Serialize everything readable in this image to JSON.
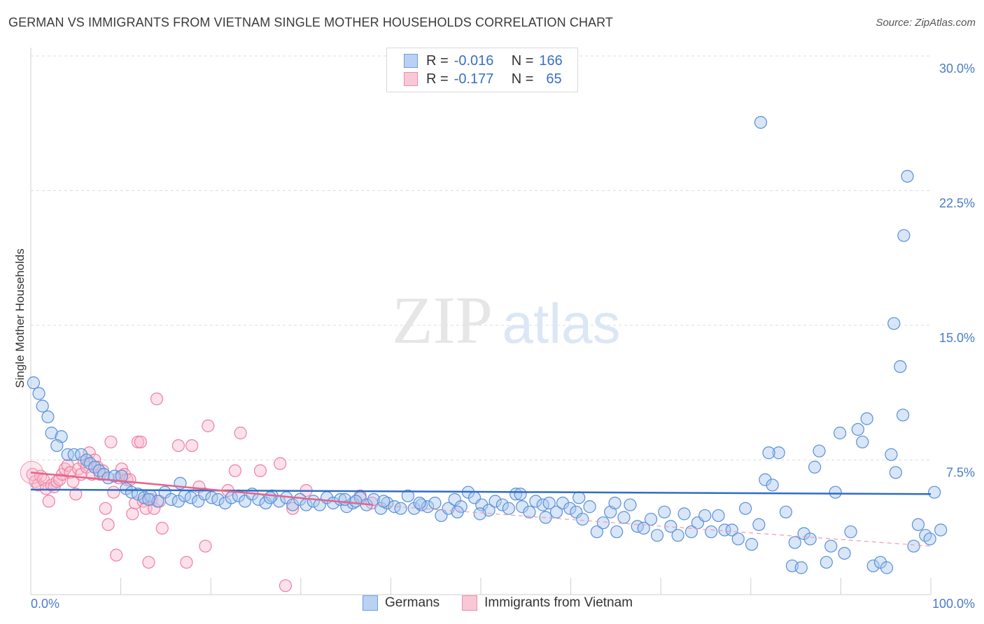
{
  "title": "GERMAN VS IMMIGRANTS FROM VIETNAM SINGLE MOTHER HOUSEHOLDS CORRELATION CHART",
  "source": "Source: ZipAtlas.com",
  "watermark": {
    "zip": "ZIP",
    "atlas": "atlas"
  },
  "legend_top": {
    "rows": [
      {
        "r_label": "R =",
        "r_value": "-0.016",
        "n_label": "N =",
        "n_value": "166",
        "color": "#6b9ee0",
        "fill": "#b9d2f3"
      },
      {
        "r_label": "R =",
        "r_value": "-0.177",
        "n_label": "N =",
        "n_value": "65",
        "color": "#ef8aa8",
        "fill": "#f8c8d6"
      }
    ]
  },
  "chart_data": {
    "type": "scatter",
    "title": "GERMAN VS IMMIGRANTS FROM VIETNAM SINGLE MOTHER HOUSEHOLDS CORRELATION CHART",
    "xlabel": "",
    "ylabel": "Single Mother Households",
    "xlim": [
      0,
      100
    ],
    "ylim": [
      0,
      30
    ],
    "x_tick_labels": [
      "0.0%",
      "100.0%"
    ],
    "y_ticks": [
      7.5,
      15.0,
      22.5,
      30.0
    ],
    "y_tick_labels": [
      "7.5%",
      "15.0%",
      "22.5%",
      "30.0%"
    ],
    "grid": "horizontal dashed",
    "legend_placement": "bottom",
    "series": [
      {
        "name": "Germans",
        "color": "#4a86d4",
        "trend": {
          "x": [
            0,
            100
          ],
          "y": [
            5.85,
            5.6
          ]
        },
        "points": [
          [
            0.3,
            11.8
          ],
          [
            0.9,
            11.2
          ],
          [
            1.3,
            10.5
          ],
          [
            1.9,
            9.9
          ],
          [
            2.3,
            9.0
          ],
          [
            3.4,
            8.8
          ],
          [
            2.9,
            8.3
          ],
          [
            4.1,
            7.8
          ],
          [
            4.8,
            7.8
          ],
          [
            5.6,
            7.8
          ],
          [
            6.2,
            7.5
          ],
          [
            6.6,
            7.3
          ],
          [
            7.1,
            7.1
          ],
          [
            7.6,
            6.9
          ],
          [
            8.1,
            6.7
          ],
          [
            8.6,
            6.5
          ],
          [
            9.3,
            6.6
          ],
          [
            10.1,
            6.6
          ],
          [
            10.6,
            5.9
          ],
          [
            11.2,
            5.7
          ],
          [
            11.9,
            5.6
          ],
          [
            12.6,
            5.4
          ],
          [
            13.3,
            5.5
          ],
          [
            14.1,
            5.2
          ],
          [
            14.9,
            5.7
          ],
          [
            15.6,
            5.3
          ],
          [
            16.4,
            5.2
          ],
          [
            17.1,
            5.5
          ],
          [
            17.8,
            5.4
          ],
          [
            18.6,
            5.2
          ],
          [
            19.3,
            5.6
          ],
          [
            20.1,
            5.4
          ],
          [
            20.8,
            5.3
          ],
          [
            21.6,
            5.1
          ],
          [
            22.3,
            5.4
          ],
          [
            23.1,
            5.5
          ],
          [
            23.8,
            5.2
          ],
          [
            24.6,
            5.6
          ],
          [
            25.3,
            5.3
          ],
          [
            26.1,
            5.1
          ],
          [
            26.8,
            5.5
          ],
          [
            27.6,
            5.2
          ],
          [
            28.4,
            5.4
          ],
          [
            29.1,
            5.0
          ],
          [
            29.9,
            5.3
          ],
          [
            30.6,
            5.0
          ],
          [
            31.4,
            5.2
          ],
          [
            32.1,
            5.0
          ],
          [
            32.9,
            5.4
          ],
          [
            33.6,
            5.1
          ],
          [
            34.4,
            5.3
          ],
          [
            35.1,
            4.9
          ],
          [
            35.8,
            5.1
          ],
          [
            36.6,
            5.4
          ],
          [
            37.3,
            5.0
          ],
          [
            38.1,
            5.3
          ],
          [
            38.9,
            4.8
          ],
          [
            39.6,
            5.1
          ],
          [
            40.4,
            4.9
          ],
          [
            41.1,
            4.8
          ],
          [
            41.9,
            5.5
          ],
          [
            42.6,
            4.8
          ],
          [
            43.4,
            5.0
          ],
          [
            44.1,
            4.9
          ],
          [
            44.9,
            5.1
          ],
          [
            45.6,
            4.4
          ],
          [
            46.4,
            4.8
          ],
          [
            47.1,
            5.3
          ],
          [
            47.8,
            4.9
          ],
          [
            48.6,
            5.7
          ],
          [
            49.3,
            5.4
          ],
          [
            50.1,
            5.0
          ],
          [
            50.9,
            4.7
          ],
          [
            51.6,
            5.2
          ],
          [
            52.4,
            5.0
          ],
          [
            53.1,
            4.8
          ],
          [
            53.9,
            5.6
          ],
          [
            54.6,
            4.9
          ],
          [
            55.4,
            4.6
          ],
          [
            56.1,
            5.2
          ],
          [
            56.9,
            5.0
          ],
          [
            57.6,
            5.1
          ],
          [
            58.4,
            4.6
          ],
          [
            59.1,
            5.1
          ],
          [
            59.9,
            4.8
          ],
          [
            60.6,
            4.6
          ],
          [
            61.3,
            4.2
          ],
          [
            62.1,
            4.9
          ],
          [
            62.9,
            3.5
          ],
          [
            63.6,
            4.0
          ],
          [
            64.4,
            4.6
          ],
          [
            65.1,
            3.5
          ],
          [
            65.9,
            4.3
          ],
          [
            66.6,
            5.0
          ],
          [
            67.4,
            3.8
          ],
          [
            68.1,
            3.7
          ],
          [
            68.9,
            4.2
          ],
          [
            69.6,
            3.3
          ],
          [
            70.4,
            4.6
          ],
          [
            71.1,
            3.8
          ],
          [
            71.9,
            3.3
          ],
          [
            72.6,
            4.5
          ],
          [
            73.4,
            3.5
          ],
          [
            74.1,
            4.0
          ],
          [
            74.9,
            4.4
          ],
          [
            75.6,
            3.5
          ],
          [
            76.4,
            4.4
          ],
          [
            77.1,
            3.6
          ],
          [
            77.9,
            3.6
          ],
          [
            78.6,
            3.1
          ],
          [
            79.4,
            4.8
          ],
          [
            80.1,
            2.8
          ],
          [
            80.9,
            3.9
          ],
          [
            81.6,
            6.4
          ],
          [
            82.4,
            6.1
          ],
          [
            83.1,
            7.9
          ],
          [
            83.9,
            4.6
          ],
          [
            84.6,
            1.6
          ],
          [
            84.9,
            2.9
          ],
          [
            85.6,
            1.5
          ],
          [
            85.9,
            3.4
          ],
          [
            86.6,
            3.1
          ],
          [
            87.1,
            7.1
          ],
          [
            87.6,
            8.0
          ],
          [
            88.4,
            1.8
          ],
          [
            88.9,
            2.7
          ],
          [
            89.4,
            5.7
          ],
          [
            89.9,
            9.0
          ],
          [
            90.4,
            2.3
          ],
          [
            91.1,
            3.5
          ],
          [
            91.9,
            9.2
          ],
          [
            92.4,
            8.5
          ],
          [
            92.9,
            9.8
          ],
          [
            93.6,
            1.6
          ],
          [
            94.4,
            1.8
          ],
          [
            95.1,
            1.5
          ],
          [
            95.6,
            7.8
          ],
          [
            96.1,
            6.8
          ],
          [
            96.6,
            12.7
          ],
          [
            96.9,
            10.0
          ],
          [
            97.4,
            23.3
          ],
          [
            98.1,
            2.7
          ],
          [
            98.6,
            3.9
          ],
          [
            99.4,
            3.3
          ],
          [
            99.9,
            3.1
          ],
          [
            100.4,
            5.7
          ],
          [
            101.1,
            3.6
          ],
          [
            81.1,
            26.3
          ],
          [
            97.0,
            20.0
          ],
          [
            95.9,
            15.1
          ],
          [
            82.0,
            7.9
          ],
          [
            43.2,
            5.1
          ],
          [
            34.9,
            5.3
          ],
          [
            54.4,
            5.6
          ],
          [
            60.9,
            5.4
          ],
          [
            49.9,
            4.5
          ],
          [
            47.4,
            4.6
          ],
          [
            36.1,
            5.2
          ],
          [
            16.6,
            6.2
          ],
          [
            13.1,
            5.3
          ],
          [
            26.6,
            5.4
          ],
          [
            39.2,
            5.2
          ],
          [
            57.2,
            4.3
          ],
          [
            64.9,
            5.1
          ]
        ]
      },
      {
        "name": "Immigrants from Vietnam",
        "color": "#ee7f9f",
        "trend": {
          "x": [
            0,
            38
          ],
          "y": [
            6.8,
            5.0
          ]
        },
        "trend_ext": {
          "x": [
            38,
            100
          ],
          "y": [
            5.0,
            2.7
          ]
        },
        "points": [
          [
            0.2,
            6.7
          ],
          [
            0.5,
            6.3
          ],
          [
            0.8,
            6.1
          ],
          [
            1.1,
            6.6
          ],
          [
            1.4,
            6.4
          ],
          [
            1.7,
            5.9
          ],
          [
            2.0,
            5.2
          ],
          [
            2.3,
            6.1
          ],
          [
            2.6,
            6.0
          ],
          [
            2.9,
            6.3
          ],
          [
            3.2,
            6.4
          ],
          [
            3.5,
            6.7
          ],
          [
            3.8,
            7.0
          ],
          [
            4.1,
            7.2
          ],
          [
            4.4,
            6.8
          ],
          [
            4.7,
            6.3
          ],
          [
            5.0,
            5.6
          ],
          [
            5.3,
            7.0
          ],
          [
            5.6,
            6.7
          ],
          [
            5.9,
            7.4
          ],
          [
            6.2,
            7.1
          ],
          [
            6.5,
            7.9
          ],
          [
            6.8,
            6.7
          ],
          [
            7.1,
            7.5
          ],
          [
            7.4,
            7.1
          ],
          [
            7.7,
            6.7
          ],
          [
            8.0,
            6.9
          ],
          [
            8.3,
            4.8
          ],
          [
            8.6,
            3.9
          ],
          [
            8.9,
            8.5
          ],
          [
            9.2,
            5.7
          ],
          [
            9.5,
            2.2
          ],
          [
            9.8,
            6.5
          ],
          [
            10.1,
            7.0
          ],
          [
            10.4,
            6.7
          ],
          [
            10.7,
            6.4
          ],
          [
            11.0,
            6.4
          ],
          [
            11.3,
            4.5
          ],
          [
            11.6,
            5.1
          ],
          [
            11.9,
            8.5
          ],
          [
            12.2,
            8.5
          ],
          [
            12.5,
            5.2
          ],
          [
            12.8,
            4.8
          ],
          [
            13.1,
            1.8
          ],
          [
            13.4,
            5.3
          ],
          [
            13.7,
            4.8
          ],
          [
            14.0,
            10.9
          ],
          [
            14.3,
            5.2
          ],
          [
            14.6,
            3.7
          ],
          [
            16.4,
            8.3
          ],
          [
            17.3,
            1.8
          ],
          [
            17.9,
            8.3
          ],
          [
            18.7,
            6.0
          ],
          [
            19.4,
            2.7
          ],
          [
            19.7,
            9.4
          ],
          [
            21.9,
            5.8
          ],
          [
            22.7,
            6.9
          ],
          [
            23.3,
            9.0
          ],
          [
            25.5,
            6.9
          ],
          [
            27.7,
            7.3
          ],
          [
            28.3,
            0.5
          ],
          [
            29.1,
            4.8
          ],
          [
            30.6,
            5.8
          ],
          [
            36.6,
            5.5
          ],
          [
            37.9,
            5.1
          ]
        ]
      }
    ]
  },
  "bottom_legend": {
    "items": [
      {
        "label": "Germans",
        "color": "#6b9ee0",
        "fill": "#b9d2f3"
      },
      {
        "label": "Immigrants from Vietnam",
        "color": "#ef8aa8",
        "fill": "#f8c8d6"
      }
    ]
  }
}
